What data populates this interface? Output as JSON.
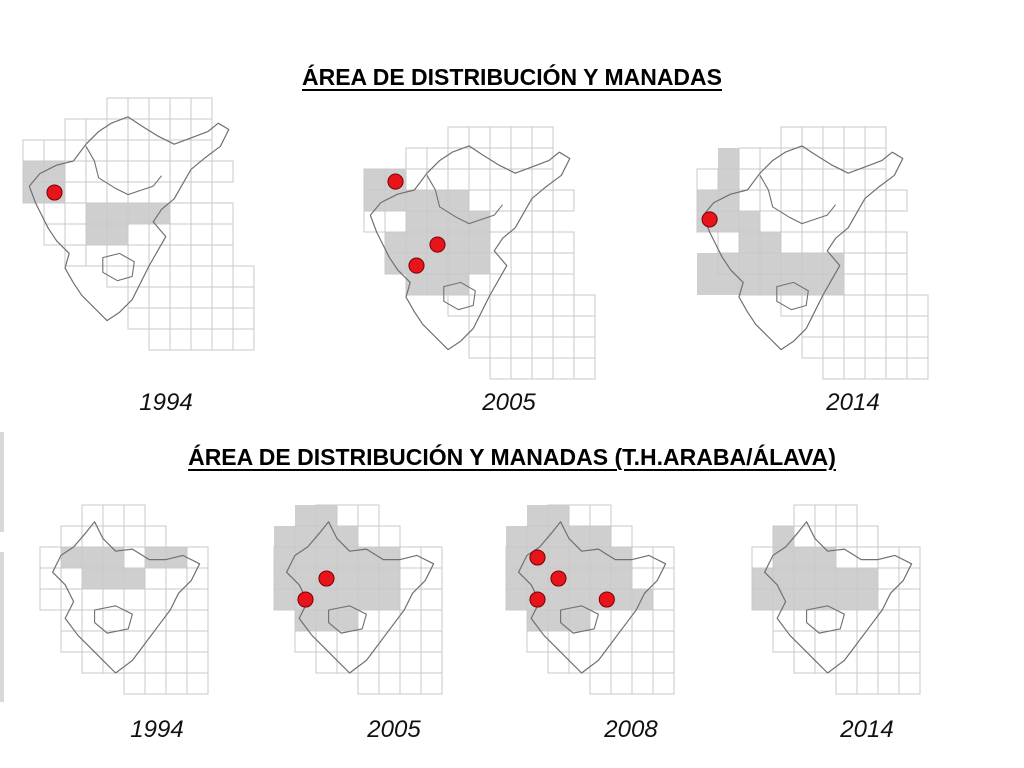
{
  "sections": {
    "top": {
      "title": "ÁREA DE DISTRIBUCIÓN Y MANADAS",
      "panels": [
        {
          "year": "1994",
          "cells": [
            [
              0,
              3
            ],
            [
              0,
              4
            ],
            [
              1,
              3
            ],
            [
              1,
              4
            ],
            [
              3,
              5
            ],
            [
              3,
              6
            ],
            [
              4,
              5
            ],
            [
              4,
              6
            ],
            [
              5,
              5
            ],
            [
              6,
              5
            ]
          ],
          "packs": [
            [
              1.5,
              4.5
            ]
          ]
        },
        {
          "year": "2005",
          "cells": [
            [
              0,
              2
            ],
            [
              0,
              3
            ],
            [
              1,
              2
            ],
            [
              1,
              3
            ],
            [
              2,
              3
            ],
            [
              2,
              4
            ],
            [
              3,
              3
            ],
            [
              3,
              4
            ],
            [
              4,
              3
            ],
            [
              4,
              4
            ],
            [
              5,
              4
            ],
            [
              1,
              5
            ],
            [
              2,
              5
            ],
            [
              3,
              5
            ],
            [
              4,
              5
            ],
            [
              5,
              5
            ],
            [
              1,
              6
            ],
            [
              2,
              6
            ],
            [
              3,
              6
            ],
            [
              4,
              6
            ],
            [
              5,
              6
            ],
            [
              2,
              7
            ],
            [
              3,
              7
            ],
            [
              4,
              7
            ]
          ],
          "packs": [
            [
              1.5,
              2.6
            ],
            [
              3.5,
              5.6
            ],
            [
              2.5,
              6.6
            ]
          ]
        },
        {
          "year": "2014",
          "cells": [
            [
              1,
              1
            ],
            [
              1,
              2
            ],
            [
              1,
              3
            ],
            [
              0,
              3
            ],
            [
              0,
              4
            ],
            [
              1,
              4
            ],
            [
              2,
              4
            ],
            [
              2,
              5
            ],
            [
              3,
              5
            ],
            [
              0,
              6
            ],
            [
              1,
              6
            ],
            [
              2,
              6
            ],
            [
              3,
              6
            ],
            [
              4,
              6
            ],
            [
              5,
              6
            ],
            [
              6,
              6
            ],
            [
              0,
              7
            ],
            [
              1,
              7
            ],
            [
              2,
              7
            ],
            [
              3,
              7
            ],
            [
              4,
              7
            ],
            [
              5,
              7
            ],
            [
              6,
              7
            ]
          ],
          "packs": [
            [
              0.6,
              4.4
            ]
          ]
        }
      ]
    },
    "bottom": {
      "title": "ÁREA DE DISTRIBUCIÓN Y MANADAS (T.H.ARABA/ÁLAVA)",
      "panels": [
        {
          "year": "1994",
          "cells": [
            [
              1,
              2
            ],
            [
              2,
              2
            ],
            [
              3,
              2
            ],
            [
              2,
              3
            ],
            [
              3,
              3
            ],
            [
              4,
              3
            ],
            [
              5,
              2
            ],
            [
              6,
              2
            ]
          ],
          "packs": []
        },
        {
          "year": "2005",
          "cells": [
            [
              1,
              0
            ],
            [
              2,
              0
            ],
            [
              2,
              1
            ],
            [
              0,
              1
            ],
            [
              1,
              1
            ],
            [
              3,
              1
            ],
            [
              0,
              2
            ],
            [
              1,
              2
            ],
            [
              2,
              2
            ],
            [
              3,
              2
            ],
            [
              4,
              2
            ],
            [
              5,
              2
            ],
            [
              0,
              3
            ],
            [
              1,
              3
            ],
            [
              2,
              3
            ],
            [
              3,
              3
            ],
            [
              4,
              3
            ],
            [
              5,
              3
            ],
            [
              0,
              4
            ],
            [
              1,
              4
            ],
            [
              2,
              4
            ],
            [
              3,
              4
            ],
            [
              4,
              4
            ],
            [
              5,
              4
            ],
            [
              1,
              5
            ],
            [
              2,
              5
            ],
            [
              3,
              5
            ]
          ],
          "packs": [
            [
              2.5,
              3.5
            ],
            [
              1.5,
              4.5
            ]
          ]
        },
        {
          "year": "2008",
          "cells": [
            [
              1,
              0
            ],
            [
              2,
              0
            ],
            [
              0,
              1
            ],
            [
              1,
              1
            ],
            [
              2,
              1
            ],
            [
              3,
              1
            ],
            [
              4,
              1
            ],
            [
              0,
              2
            ],
            [
              1,
              2
            ],
            [
              2,
              2
            ],
            [
              3,
              2
            ],
            [
              4,
              2
            ],
            [
              5,
              2
            ],
            [
              0,
              3
            ],
            [
              1,
              3
            ],
            [
              2,
              3
            ],
            [
              3,
              3
            ],
            [
              4,
              3
            ],
            [
              5,
              3
            ],
            [
              0,
              4
            ],
            [
              1,
              4
            ],
            [
              2,
              4
            ],
            [
              3,
              4
            ],
            [
              4,
              4
            ],
            [
              5,
              4
            ],
            [
              6,
              4
            ],
            [
              1,
              5
            ],
            [
              2,
              5
            ],
            [
              3,
              5
            ]
          ],
          "packs": [
            [
              1.5,
              2.5
            ],
            [
              2.5,
              3.5
            ],
            [
              1.5,
              4.5
            ],
            [
              4.8,
              4.5
            ]
          ]
        },
        {
          "year": "2014",
          "cells": [
            [
              1,
              1
            ],
            [
              1,
              2
            ],
            [
              2,
              2
            ],
            [
              3,
              2
            ],
            [
              0,
              3
            ],
            [
              1,
              3
            ],
            [
              2,
              3
            ],
            [
              3,
              3
            ],
            [
              4,
              3
            ],
            [
              5,
              3
            ],
            [
              0,
              4
            ],
            [
              1,
              4
            ],
            [
              2,
              4
            ],
            [
              3,
              4
            ],
            [
              4,
              4
            ],
            [
              5,
              4
            ]
          ],
          "packs": []
        }
      ]
    }
  },
  "colors": {
    "grid_line": "#c8c8c8",
    "occupied_cell": "#cfcfcf",
    "border_line": "#707070",
    "pack_fill": "#e8141b",
    "pack_stroke": "#7a0000"
  }
}
